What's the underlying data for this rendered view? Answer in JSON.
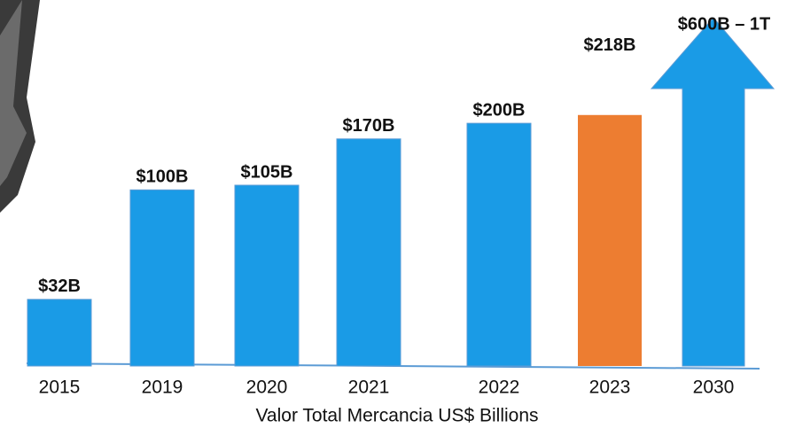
{
  "chart_data": {
    "type": "bar",
    "x_label": "Valor Total Mercancia US$ Billions",
    "categories": [
      "2015",
      "2019",
      "2020",
      "2021",
      "2022",
      "2023",
      "2030"
    ],
    "values": [
      32,
      100,
      105,
      170,
      200,
      218,
      600
    ],
    "value_labels": [
      "$32B",
      "$100B",
      "$105B",
      "$170B",
      "$200B",
      "$218B",
      "$600B – 1T"
    ],
    "colors": [
      "#1a9be6",
      "#1a9be6",
      "#1a9be6",
      "#1a9be6",
      "#1a9be6",
      "#ed7d31",
      "#1a9be6"
    ],
    "log_scale": true
  }
}
